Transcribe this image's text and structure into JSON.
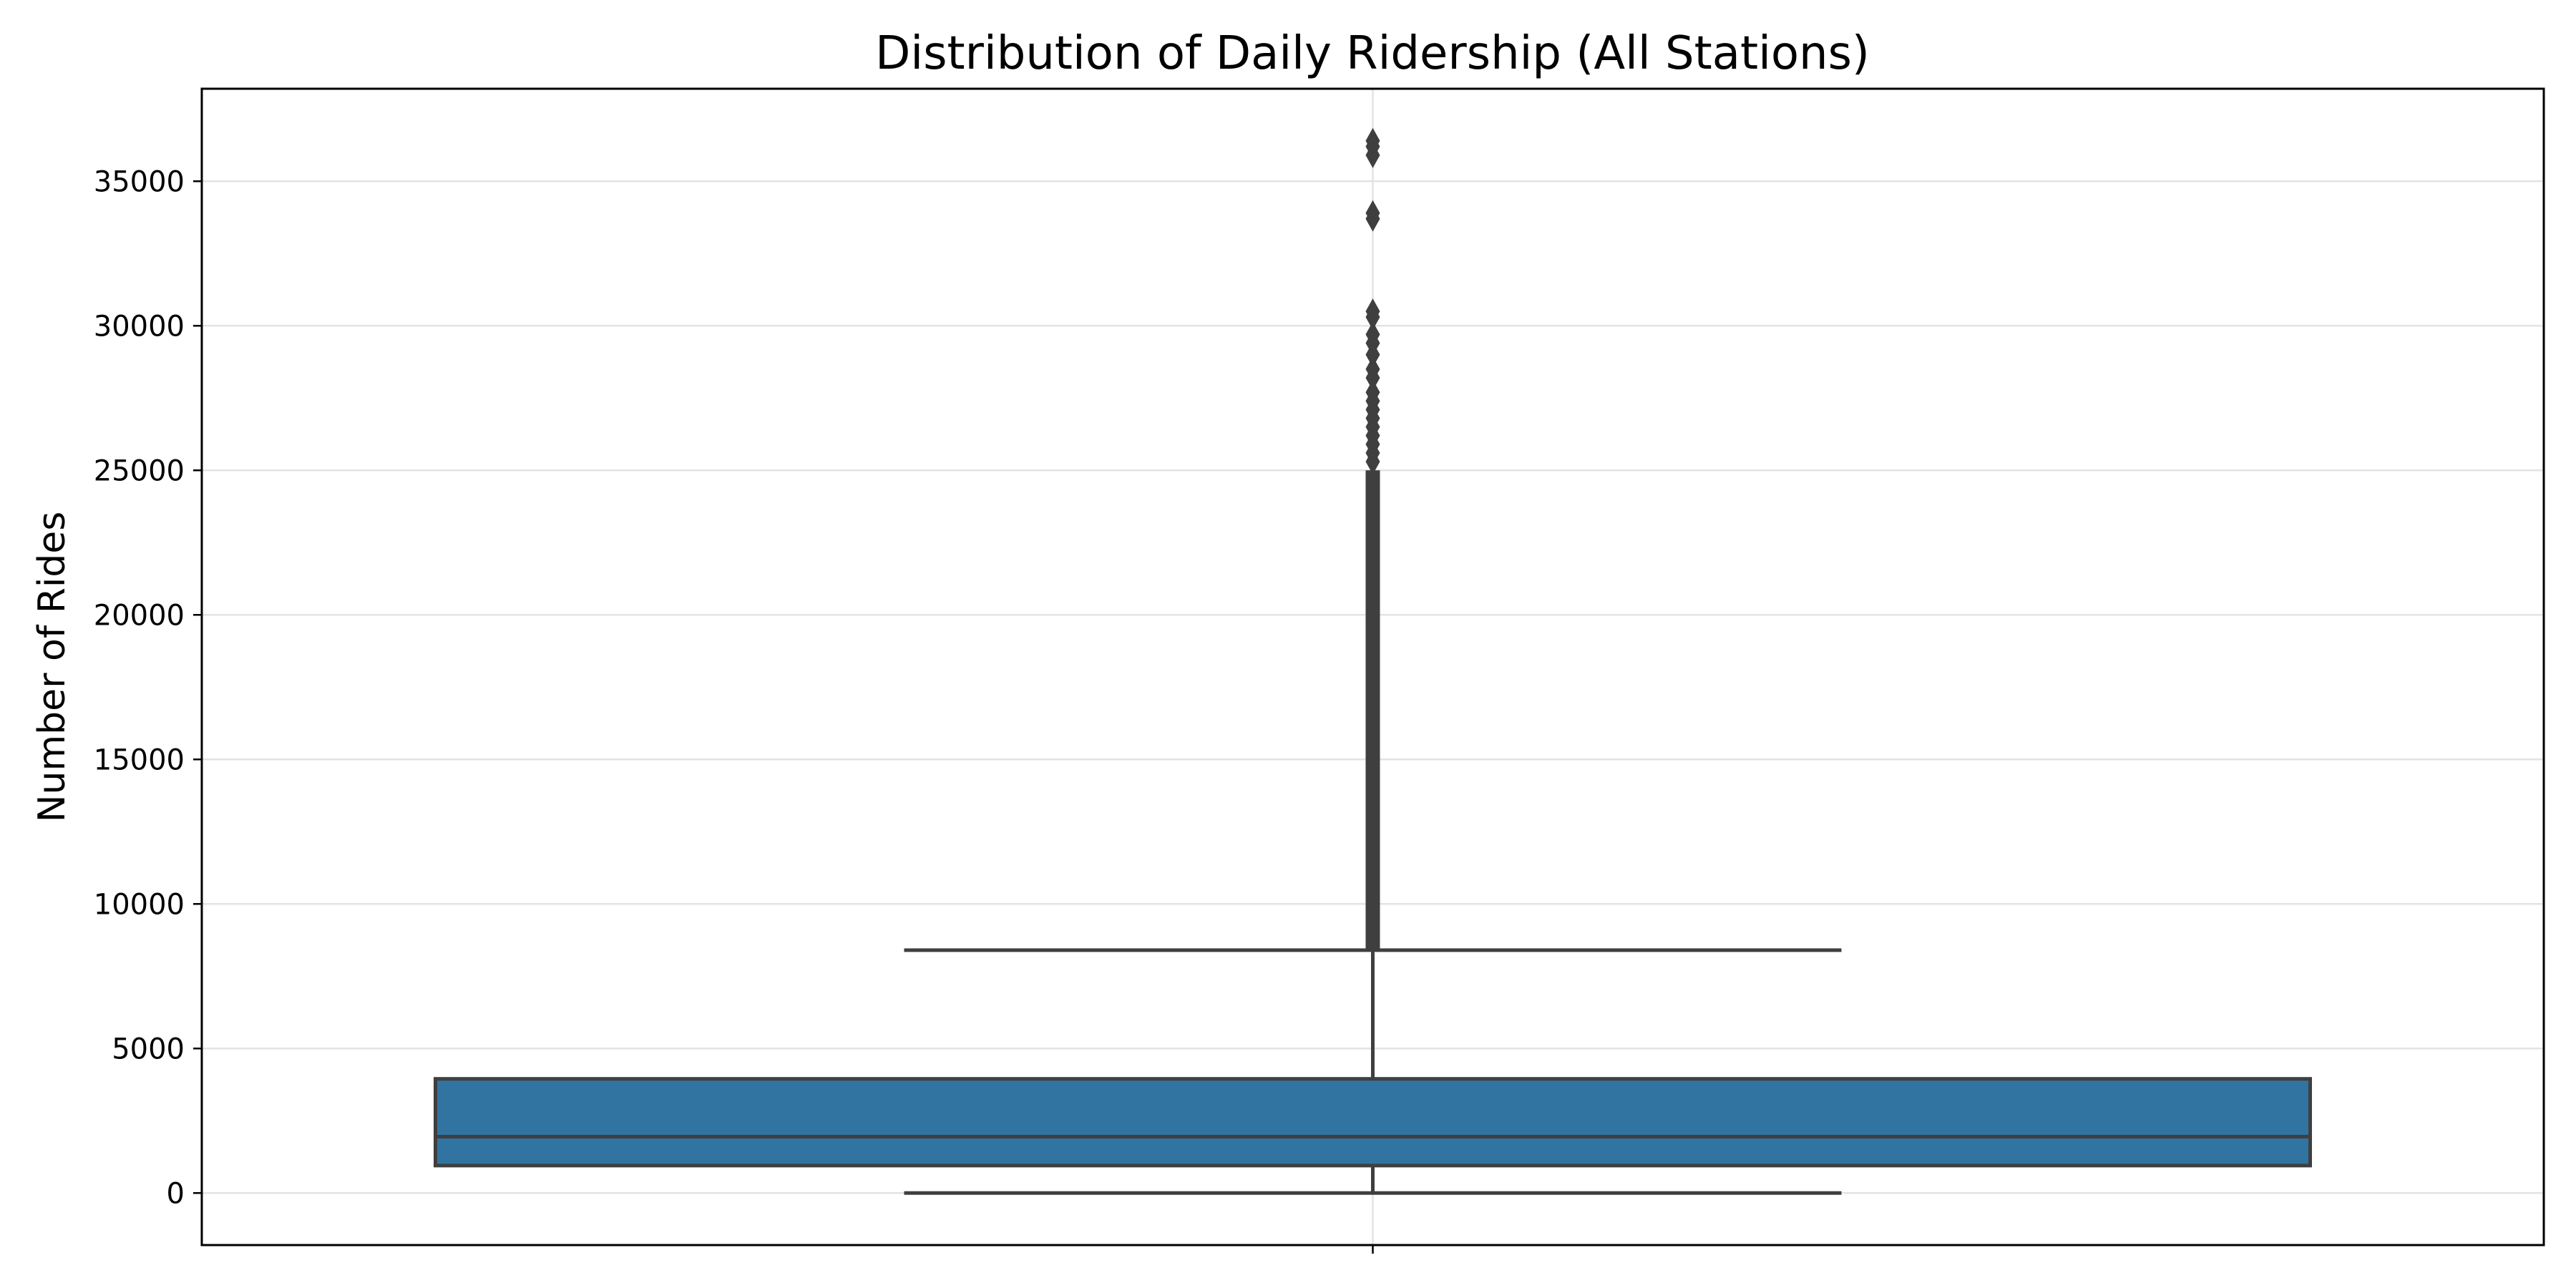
{
  "chart_data": {
    "type": "box",
    "title": "Distribution of Daily Ridership (All Stations)",
    "xlabel": "",
    "ylabel": "Number of Rides",
    "ylim": [
      -1800,
      38200
    ],
    "yticks": [
      0,
      5000,
      10000,
      15000,
      20000,
      25000,
      30000,
      35000
    ],
    "ytick_labels": [
      "0",
      "5000",
      "10000",
      "15000",
      "20000",
      "25000",
      "30000",
      "35000"
    ],
    "grid": true,
    "box": {
      "whisker_low": 0,
      "q1": 950,
      "median": 1950,
      "q3": 3950,
      "whisker_high": 8400,
      "color": "#3274a1",
      "edge_color": "#3f3f3f"
    },
    "outliers": {
      "dense_range": [
        8400,
        25000
      ],
      "values": [
        25300,
        25600,
        25900,
        26200,
        26500,
        26800,
        27100,
        27400,
        27700,
        28200,
        28500,
        29000,
        29400,
        29700,
        30300,
        30500,
        33700,
        33900,
        35900,
        36200,
        36400
      ]
    }
  }
}
